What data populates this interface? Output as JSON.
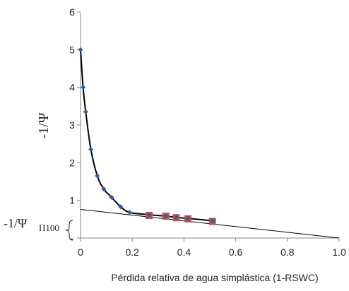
{
  "chart_data": {
    "type": "scatter",
    "ylabel": "-1/Ψ",
    "xlabel": "Pérdida relativa de agua simplástica (1-RSWC)",
    "xlim": [
      0,
      1.0
    ],
    "ylim": [
      0,
      6
    ],
    "x_ticks": [
      "0",
      "0.2",
      "0.4",
      "0.6",
      "0.8",
      "1.0"
    ],
    "y_ticks": [
      "-",
      "1",
      "2",
      "3",
      "4",
      "5",
      "6"
    ],
    "grid": false,
    "series": [
      {
        "marker": "diamond",
        "color": "#2e5fa3",
        "x": [
          0.0,
          0.01,
          0.02,
          0.04,
          0.065,
          0.09,
          0.12,
          0.155,
          0.19,
          0.265,
          0.33,
          0.37,
          0.415,
          0.51
        ],
        "y": [
          5.0,
          4.0,
          3.35,
          2.35,
          1.65,
          1.3,
          1.08,
          0.83,
          0.68,
          0.62,
          0.58,
          0.55,
          0.52,
          0.46
        ]
      },
      {
        "marker": "square",
        "color": "#c0504d",
        "x": [
          0.265,
          0.33,
          0.37,
          0.415,
          0.51
        ],
        "y": [
          0.6,
          0.58,
          0.54,
          0.51,
          0.44
        ]
      }
    ],
    "curve_color": "#000000",
    "fit_line": {
      "x": [
        0.0,
        1.0
      ],
      "y": [
        0.76,
        0.0
      ]
    },
    "annotation": {
      "main": "-1/Ψ",
      "sub": "Π100"
    }
  }
}
